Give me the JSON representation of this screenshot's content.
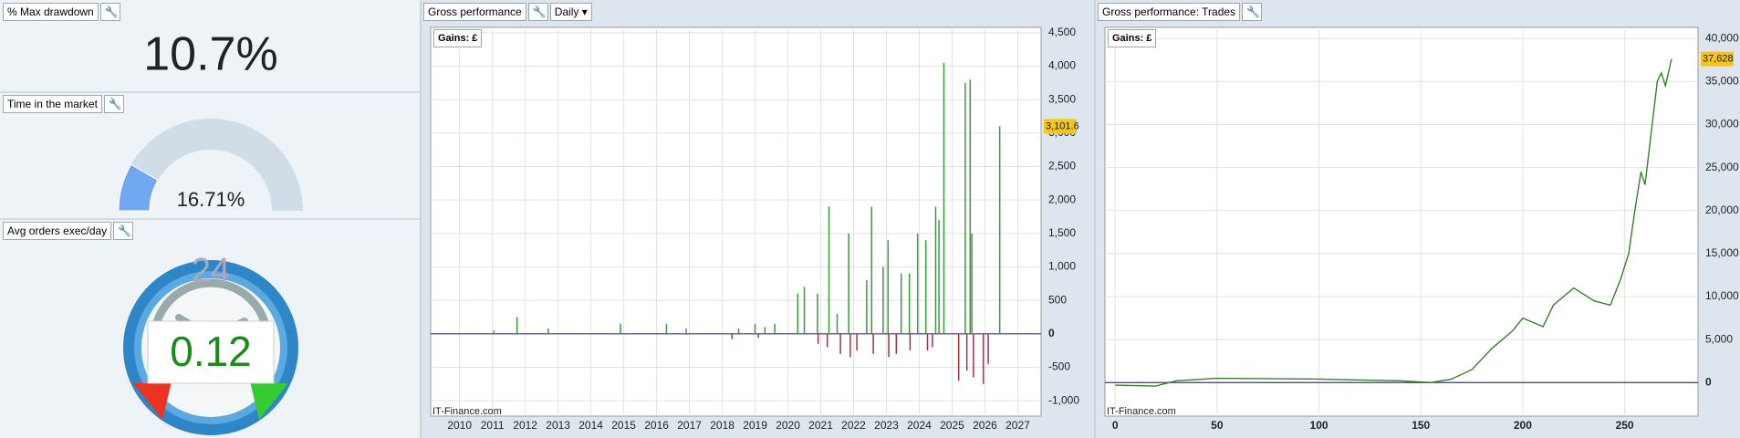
{
  "widgets": {
    "max_drawdown": {
      "title": "% Max drawdown",
      "value": "10.7%"
    },
    "time_in_market": {
      "title": "Time in the market",
      "value": 16.71,
      "label": "16.71%"
    },
    "avg_orders": {
      "title": "Avg orders exec/day",
      "clock": "24",
      "value": "0.12"
    }
  },
  "chart_data": [
    {
      "type": "bar",
      "title": "Gross performance",
      "period": "Daily",
      "unit_label": "Gains: £",
      "watermark": "IT-Finance.com",
      "x": [
        2011.05,
        2011.75,
        2012.7,
        2014.9,
        2016.3,
        2016.9,
        2018.3,
        2018.5,
        2019.0,
        2019.1,
        2019.3,
        2019.6,
        2020.3,
        2020.5,
        2020.9,
        2020.92,
        2021.2,
        2021.25,
        2021.5,
        2021.6,
        2021.85,
        2021.9,
        2022.1,
        2022.4,
        2022.55,
        2022.6,
        2022.9,
        2023.05,
        2023.07,
        2023.3,
        2023.45,
        2023.7,
        2023.72,
        2023.95,
        2024.2,
        2024.25,
        2024.4,
        2024.5,
        2024.6,
        2024.75,
        2025.2,
        2025.4,
        2025.45,
        2025.55,
        2025.6,
        2025.65,
        2025.95,
        2026.1,
        2026.45
      ],
      "values": [
        50,
        250,
        80,
        150,
        150,
        80,
        -80,
        80,
        150,
        -60,
        100,
        150,
        600,
        700,
        600,
        -150,
        -200,
        1900,
        300,
        -300,
        1500,
        -350,
        -250,
        800,
        1900,
        -300,
        1000,
        1400,
        -350,
        -300,
        900,
        900,
        -250,
        1500,
        1400,
        -250,
        -200,
        1900,
        1700,
        4050,
        -700,
        3750,
        -550,
        3800,
        1500,
        -650,
        -750,
        -450,
        3101.6
      ],
      "positive_color": "#3a9a3a",
      "negative_color": "#a8303c",
      "xlim": [
        2009.12,
        2027.71
      ],
      "ylim": [
        -1230,
        4580
      ],
      "xticks": [
        2010,
        2011,
        2012,
        2013,
        2014,
        2015,
        2016,
        2017,
        2018,
        2019,
        2020,
        2021,
        2022,
        2023,
        2024,
        2025,
        2026,
        2027
      ],
      "yticks": [
        {
          "value": -1000,
          "label": "-1,000"
        },
        -500,
        0,
        500,
        {
          "value": 1000,
          "label": "1,000"
        },
        {
          "value": 1500,
          "label": "1,500"
        },
        {
          "value": 2000,
          "label": "2,000"
        },
        {
          "value": 2500,
          "label": "2,500"
        },
        {
          "value": 3000,
          "label": "3,000"
        },
        {
          "value": 3500,
          "label": "3,500"
        },
        {
          "value": 4000,
          "label": "4,000"
        },
        {
          "value": 4500,
          "label": "4,500"
        }
      ],
      "grid": true,
      "last_value": {
        "value": 3101.6,
        "label": "3,101.6"
      }
    },
    {
      "type": "line",
      "title": "Gross performance: Trades",
      "unit_label": "Gains: £",
      "watermark": "IT-Finance.com",
      "x": [
        0,
        20,
        30,
        50,
        100,
        140,
        155,
        165,
        175,
        185,
        195,
        200,
        210,
        215,
        225,
        235,
        243,
        248,
        252,
        255,
        258,
        260,
        263,
        266,
        268,
        270,
        273
      ],
      "values": [
        -300,
        -400,
        200,
        500,
        400,
        200,
        0,
        400,
        1500,
        4000,
        6000,
        7500,
        6500,
        9000,
        11000,
        9500,
        9000,
        12000,
        15000,
        20000,
        24500,
        23000,
        29000,
        35000,
        36000,
        34500,
        37628
      ],
      "color": "#3a7d2c",
      "xlim": [
        -5,
        286
      ],
      "ylim": [
        -3900,
        41300
      ],
      "xticks": [
        0,
        50,
        100,
        150,
        200,
        250
      ],
      "yticks": [
        0,
        {
          "value": 5000,
          "label": "5,000"
        },
        {
          "value": 10000,
          "label": "10,000"
        },
        {
          "value": 15000,
          "label": "15,000"
        },
        {
          "value": 20000,
          "label": "20,000"
        },
        {
          "value": 25000,
          "label": "25,000"
        },
        {
          "value": 30000,
          "label": "30,000"
        },
        {
          "value": 35000,
          "label": "35,000"
        },
        {
          "value": 40000,
          "label": "40,000"
        }
      ],
      "grid": true,
      "last_value": {
        "value": 37628,
        "label": "37,628"
      }
    }
  ]
}
